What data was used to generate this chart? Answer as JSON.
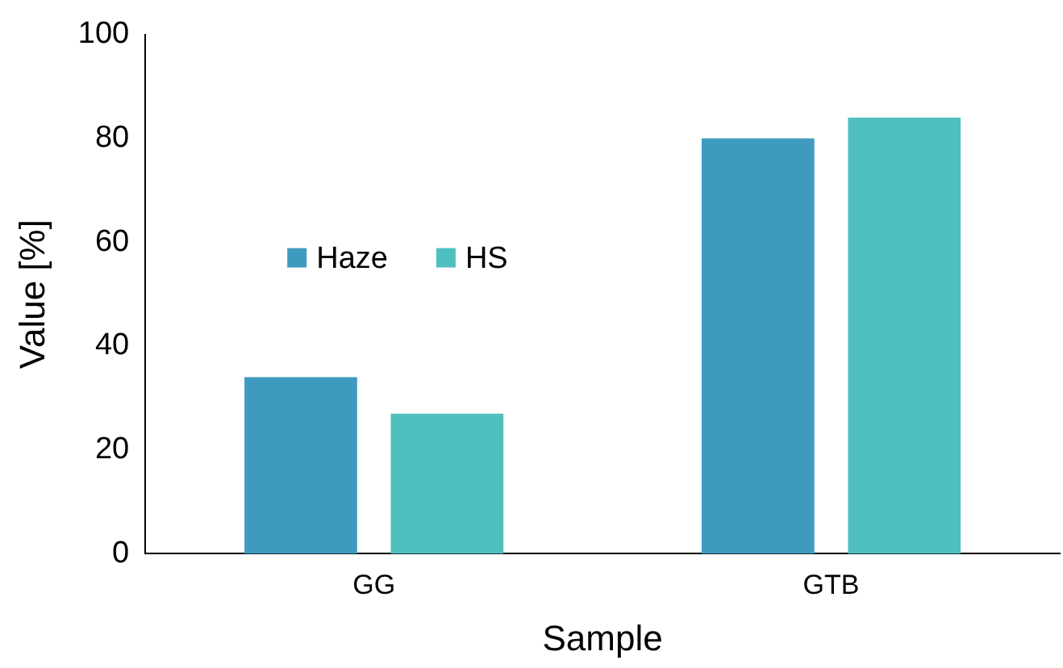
{
  "chart_data": {
    "type": "bar",
    "xlabel": "Sample",
    "ylabel": "Value [%]",
    "categories": [
      "GG",
      "GTB"
    ],
    "series": [
      {
        "name": "Haze",
        "color": "#3f9ac0",
        "values": [
          34,
          80
        ]
      },
      {
        "name": "HS",
        "color": "#4fbfc0",
        "values": [
          27,
          84
        ]
      }
    ],
    "ylim": [
      0,
      100
    ],
    "yticks": [
      0,
      20,
      40,
      60,
      80,
      100
    ],
    "grid": false,
    "legend": "left"
  }
}
